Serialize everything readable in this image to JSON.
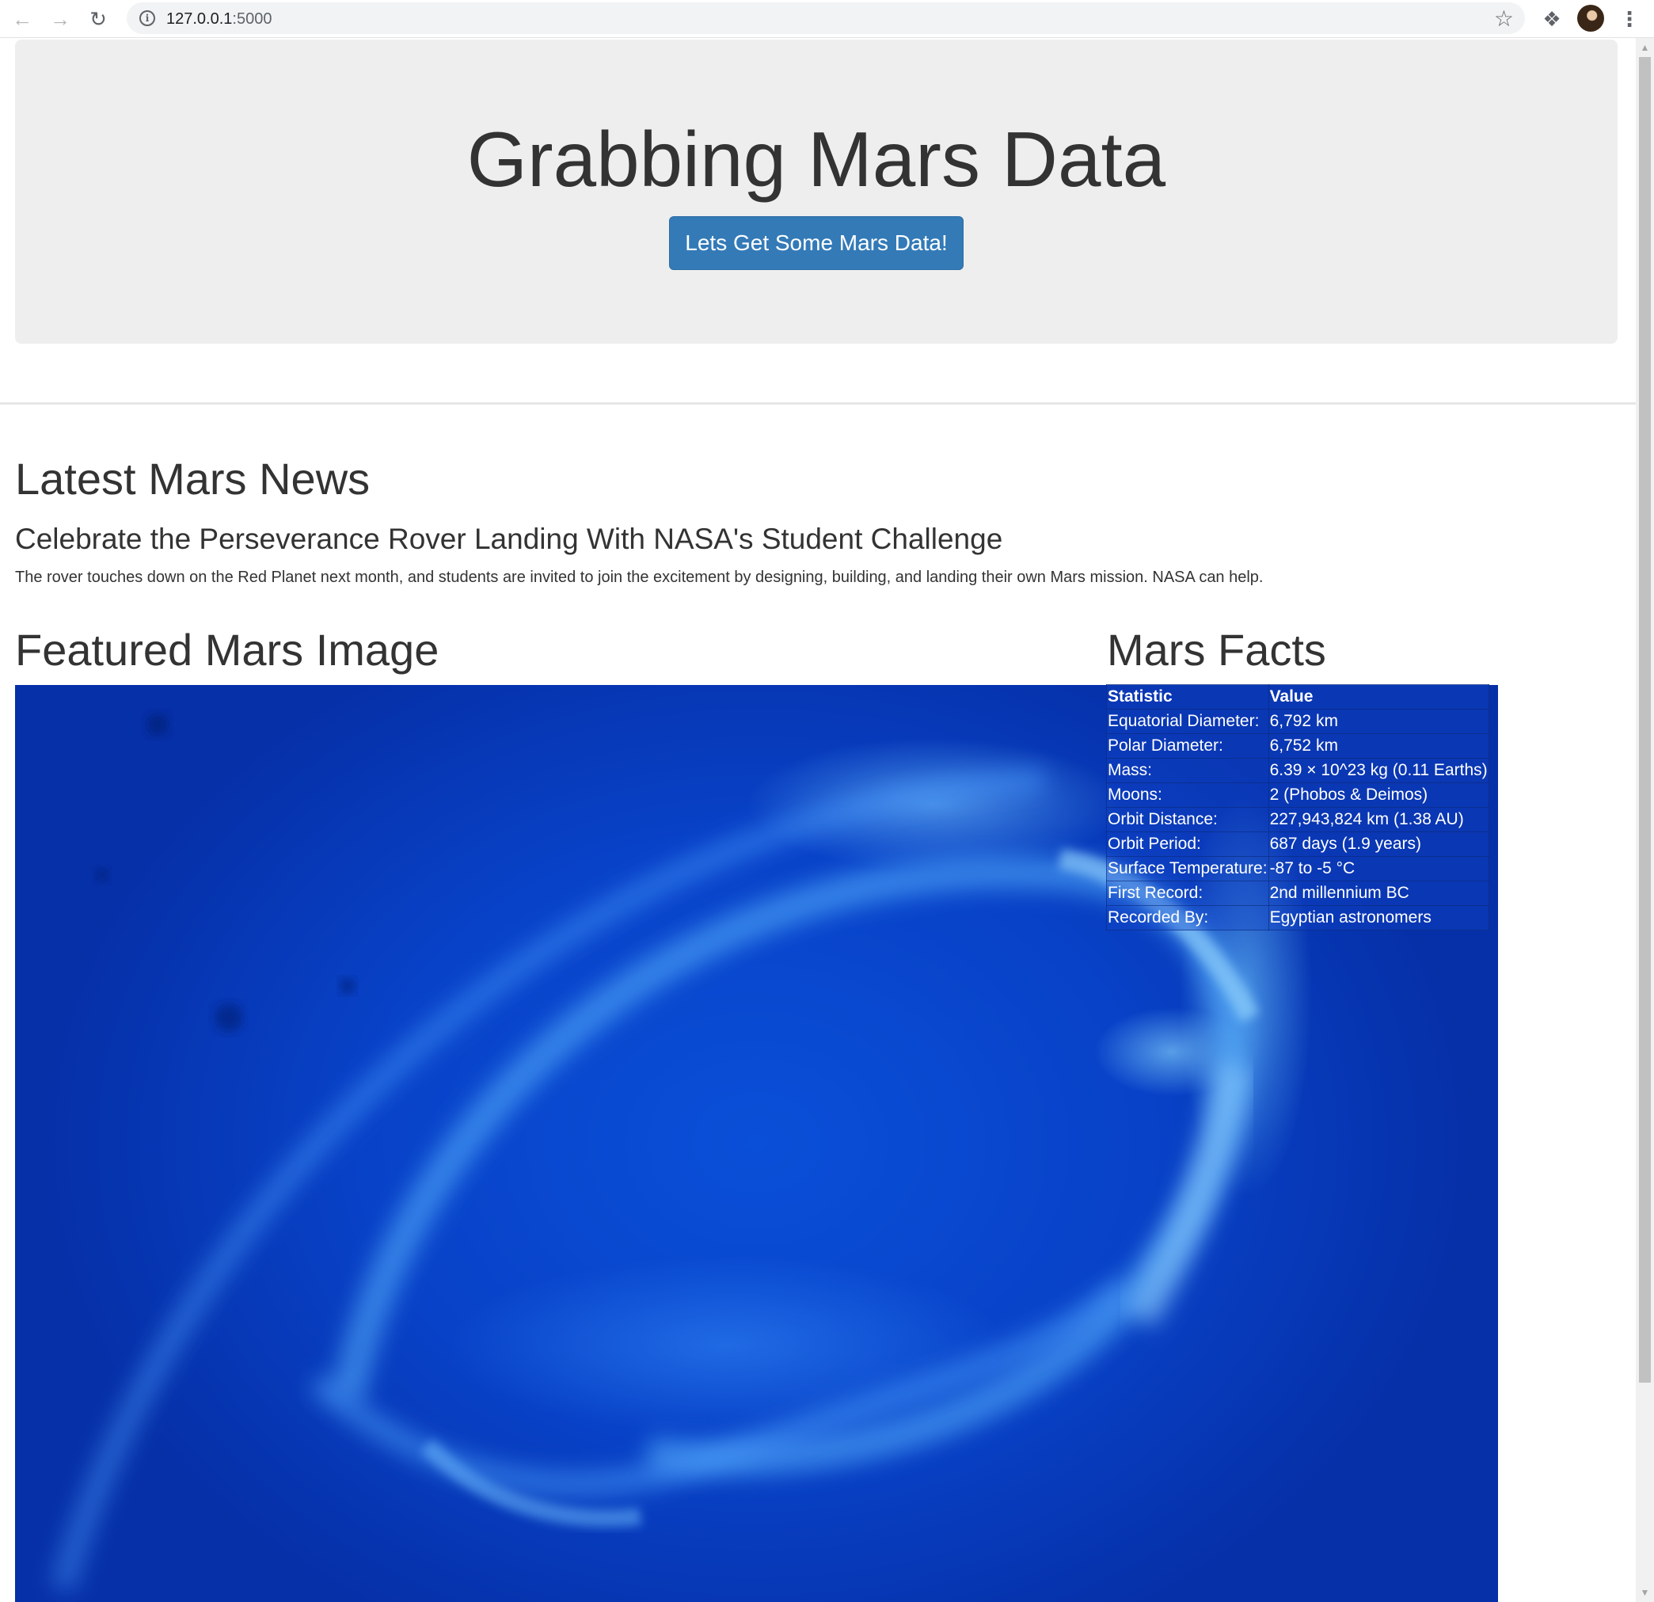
{
  "browser": {
    "url_host": "127.0.0.1",
    "url_port": ":5000"
  },
  "jumbotron": {
    "title": "Grabbing Mars Data",
    "button_label": "Lets Get Some Mars Data!"
  },
  "news": {
    "heading": "Latest Mars News",
    "title": "Celebrate the Perseverance Rover Landing With NASA's Student Challenge",
    "paragraph": "The rover touches down on the Red Planet next month, and students are invited to join the excitement by designing, building, and landing their own Mars mission. NASA can help."
  },
  "featured_image": {
    "heading": "Featured Mars Image"
  },
  "facts": {
    "heading": "Mars Facts",
    "columns": [
      "Statistic",
      "Value"
    ],
    "rows": [
      [
        "Equatorial Diameter:",
        "6,792 km"
      ],
      [
        "Polar Diameter:",
        "6,752 km"
      ],
      [
        "Mass:",
        "6.39 × 10^23 kg (0.11 Earths)"
      ],
      [
        "Moons:",
        "2 (Phobos & Deimos)"
      ],
      [
        "Orbit Distance:",
        "227,943,824 km (1.38 AU)"
      ],
      [
        "Orbit Period:",
        "687 days (1.9 years)"
      ],
      [
        "Surface Temperature:",
        "-87 to -5 °C"
      ],
      [
        "First Record:",
        "2nd millennium BC"
      ],
      [
        "Recorded By:",
        "Egyptian astronomers"
      ]
    ]
  },
  "colors": {
    "primary_button": "#337ab7",
    "jumbotron_bg": "#eeeeee",
    "image_blue": "#0842c8"
  },
  "icons": [
    "back-arrow-icon",
    "forward-arrow-icon",
    "reload-icon",
    "info-icon",
    "star-icon",
    "puzzle-icon",
    "kebab-menu-icon"
  ]
}
